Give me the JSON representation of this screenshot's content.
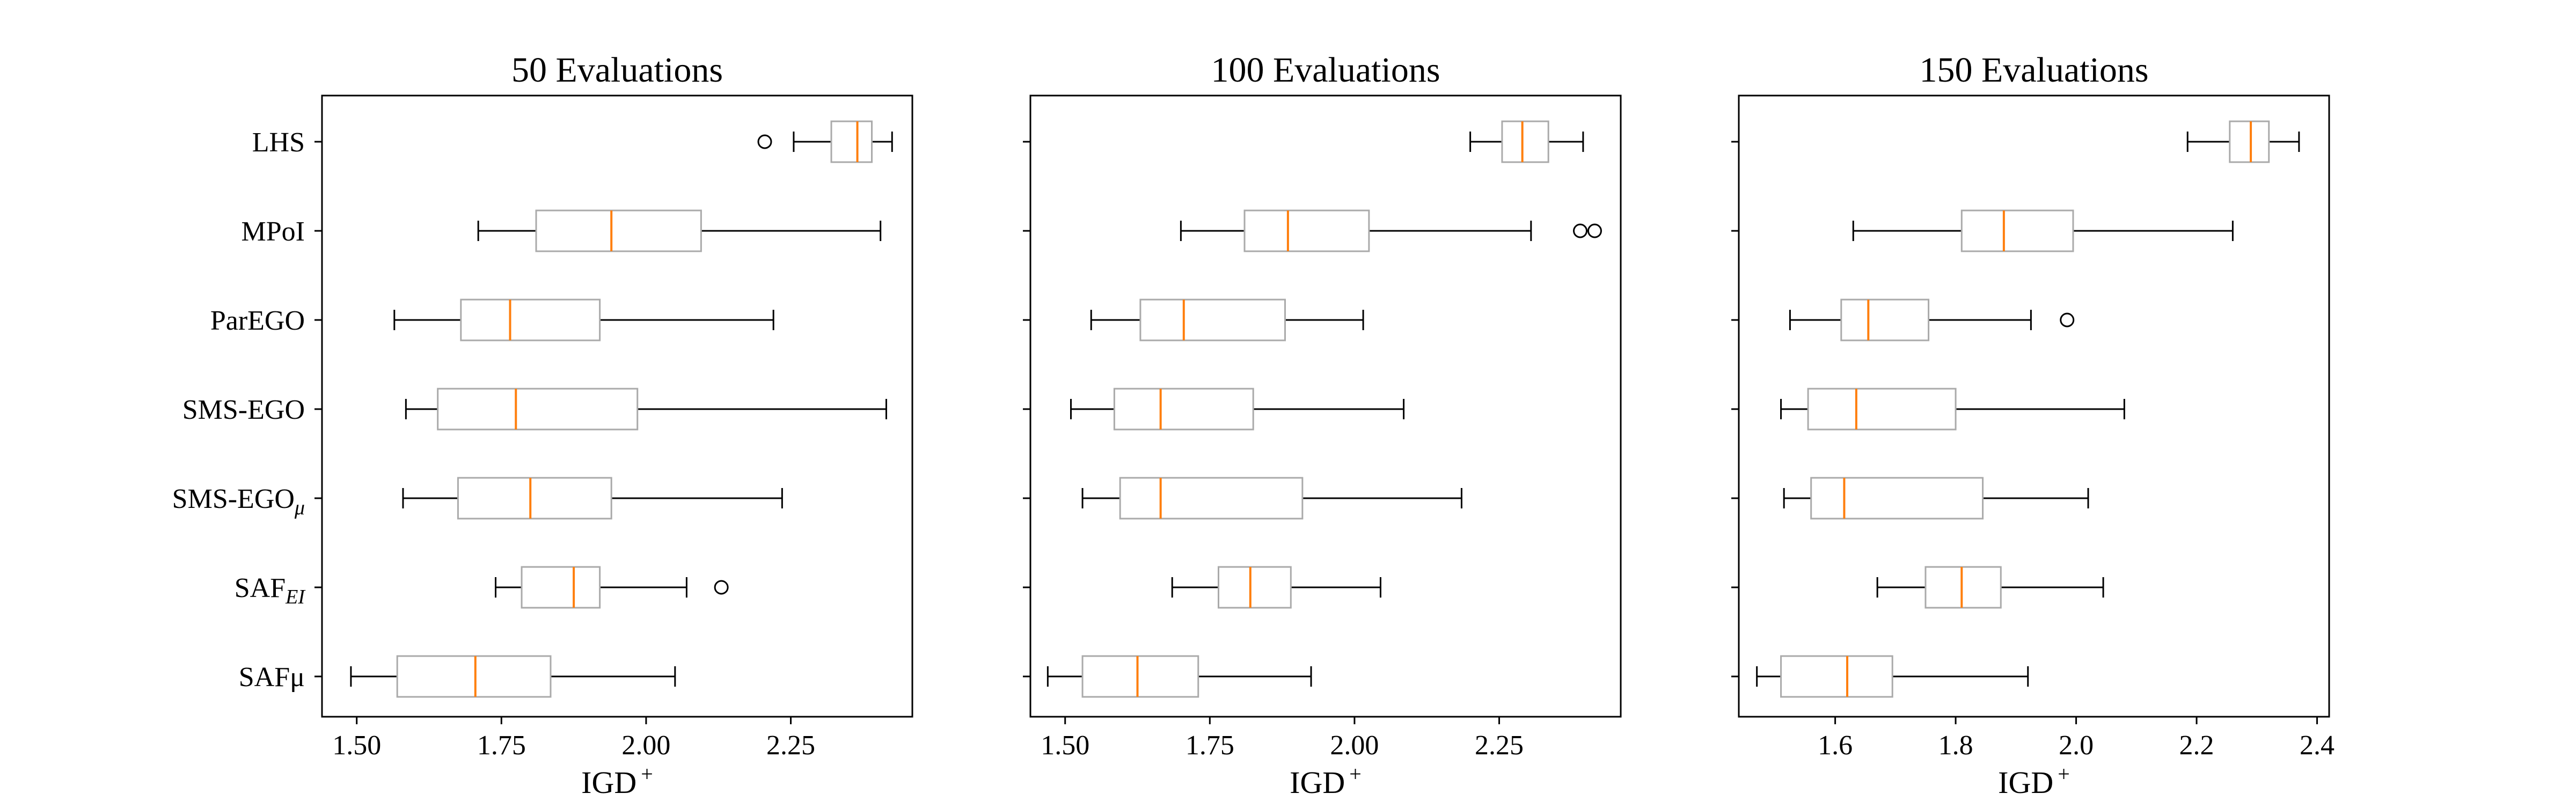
{
  "categories": [
    "LHS",
    "MPoI",
    "ParEGO",
    "SMS-EGO",
    "SMS-EGOμ",
    "SAF_EI",
    "SAFμ"
  ],
  "category_labels": [
    {
      "main": "LHS",
      "sub": ""
    },
    {
      "main": "MPoI",
      "sub": ""
    },
    {
      "main": "ParEGO",
      "sub": ""
    },
    {
      "main": "SMS-EGO",
      "sub": ""
    },
    {
      "main": "SMS-EGO",
      "sub": "μ"
    },
    {
      "main": "SAF",
      "sub": "EI"
    },
    {
      "main": "SAFμ",
      "sub": ""
    }
  ],
  "colors": {
    "box": "#aaaaaa",
    "median": "#ff7f0e",
    "whisker": "#000000",
    "frame": "#000000"
  },
  "chart_data": [
    {
      "type": "boxplot",
      "orientation": "horizontal",
      "title": "50 Evaluations",
      "xlabel": "IGD⁺",
      "xlim": [
        1.44,
        2.46
      ],
      "xticks": [
        1.5,
        1.75,
        2.0,
        2.25
      ],
      "xtick_labels": [
        "1.50",
        "1.75",
        "2.00",
        "2.25"
      ],
      "series": [
        {
          "name": "LHS",
          "whislo": 2.255,
          "q1": 2.32,
          "med": 2.365,
          "q3": 2.39,
          "whishi": 2.425,
          "fliers": [
            2.205
          ]
        },
        {
          "name": "MPoI",
          "whislo": 1.71,
          "q1": 1.81,
          "med": 1.94,
          "q3": 2.095,
          "whishi": 2.405,
          "fliers": []
        },
        {
          "name": "ParEGO",
          "whislo": 1.565,
          "q1": 1.68,
          "med": 1.765,
          "q3": 1.92,
          "whishi": 2.22,
          "fliers": []
        },
        {
          "name": "SMS-EGO",
          "whislo": 1.585,
          "q1": 1.64,
          "med": 1.775,
          "q3": 1.985,
          "whishi": 2.415,
          "fliers": []
        },
        {
          "name": "SMS-EGOμ",
          "whislo": 1.58,
          "q1": 1.675,
          "med": 1.8,
          "q3": 1.94,
          "whishi": 2.235,
          "fliers": []
        },
        {
          "name": "SAF_EI",
          "whislo": 1.74,
          "q1": 1.785,
          "med": 1.875,
          "q3": 1.92,
          "whishi": 2.07,
          "fliers": [
            2.13
          ]
        },
        {
          "name": "SAFμ",
          "whislo": 1.49,
          "q1": 1.57,
          "med": 1.705,
          "q3": 1.835,
          "whishi": 2.05,
          "fliers": []
        }
      ]
    },
    {
      "type": "boxplot",
      "orientation": "horizontal",
      "title": "100 Evaluations",
      "xlabel": "IGD⁺",
      "xlim": [
        1.44,
        2.46
      ],
      "xticks": [
        1.5,
        1.75,
        2.0,
        2.25
      ],
      "xtick_labels": [
        "1.50",
        "1.75",
        "2.00",
        "2.25"
      ],
      "series": [
        {
          "name": "LHS",
          "whislo": 2.2,
          "q1": 2.255,
          "med": 2.29,
          "q3": 2.335,
          "whishi": 2.395,
          "fliers": []
        },
        {
          "name": "MPoI",
          "whislo": 1.7,
          "q1": 1.81,
          "med": 1.885,
          "q3": 2.025,
          "whishi": 2.305,
          "fliers": [
            2.39,
            2.415
          ]
        },
        {
          "name": "ParEGO",
          "whislo": 1.545,
          "q1": 1.63,
          "med": 1.705,
          "q3": 1.88,
          "whishi": 2.015,
          "fliers": []
        },
        {
          "name": "SMS-EGO",
          "whislo": 1.51,
          "q1": 1.585,
          "med": 1.665,
          "q3": 1.825,
          "whishi": 2.085,
          "fliers": []
        },
        {
          "name": "SMS-EGOμ",
          "whislo": 1.53,
          "q1": 1.595,
          "med": 1.665,
          "q3": 1.91,
          "whishi": 2.185,
          "fliers": []
        },
        {
          "name": "SAF_EI",
          "whislo": 1.685,
          "q1": 1.765,
          "med": 1.82,
          "q3": 1.89,
          "whishi": 2.045,
          "fliers": []
        },
        {
          "name": "SAFμ",
          "whislo": 1.47,
          "q1": 1.53,
          "med": 1.625,
          "q3": 1.73,
          "whishi": 1.925,
          "fliers": []
        }
      ]
    },
    {
      "type": "boxplot",
      "orientation": "horizontal",
      "title": "150 Evaluations",
      "xlabel": "IGD⁺",
      "xlim": [
        1.44,
        2.42
      ],
      "xticks": [
        1.6,
        1.8,
        2.0,
        2.2,
        2.4
      ],
      "xtick_labels": [
        "1.6",
        "1.8",
        "2.0",
        "2.2",
        "2.4"
      ],
      "series": [
        {
          "name": "LHS",
          "whislo": 2.185,
          "q1": 2.255,
          "med": 2.29,
          "q3": 2.32,
          "whishi": 2.37,
          "fliers": []
        },
        {
          "name": "MPoI",
          "whislo": 1.63,
          "q1": 1.81,
          "med": 1.88,
          "q3": 1.995,
          "whishi": 2.26,
          "fliers": []
        },
        {
          "name": "ParEGO",
          "whislo": 1.525,
          "q1": 1.61,
          "med": 1.655,
          "q3": 1.755,
          "whishi": 1.925,
          "fliers": [
            1.985
          ]
        },
        {
          "name": "SMS-EGO",
          "whislo": 1.51,
          "q1": 1.555,
          "med": 1.635,
          "q3": 1.8,
          "whishi": 2.08,
          "fliers": []
        },
        {
          "name": "SMS-EGOμ",
          "whislo": 1.515,
          "q1": 1.56,
          "med": 1.615,
          "q3": 1.845,
          "whishi": 2.02,
          "fliers": []
        },
        {
          "name": "SAF_EI",
          "whislo": 1.67,
          "q1": 1.75,
          "med": 1.81,
          "q3": 1.875,
          "whishi": 2.045,
          "fliers": []
        },
        {
          "name": "SAFμ",
          "whislo": 1.47,
          "q1": 1.51,
          "med": 1.62,
          "q3": 1.695,
          "whishi": 1.92,
          "fliers": []
        }
      ]
    }
  ]
}
